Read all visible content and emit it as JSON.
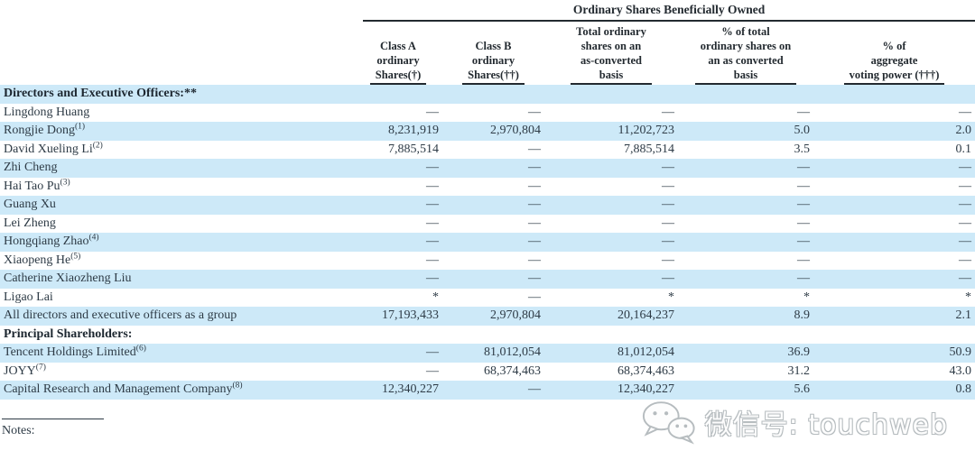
{
  "table": {
    "span_header": "Ordinary Shares Beneficially Owned",
    "columns": [
      {
        "lines": [
          "Class A",
          "ordinary",
          "Shares(†)"
        ]
      },
      {
        "lines": [
          "Class B",
          "ordinary",
          "Shares(††)"
        ]
      },
      {
        "lines": [
          "Total ordinary",
          "shares on an",
          "as-converted",
          "basis"
        ]
      },
      {
        "lines": [
          "% of total",
          "ordinary shares on",
          "an as converted",
          "basis"
        ]
      },
      {
        "lines": [
          "% of",
          "aggregate",
          "voting power (†††)"
        ]
      }
    ],
    "rows": [
      {
        "name": "Directors and Executive Officers:**",
        "bold": true,
        "hl": true,
        "cells": [
          "",
          "",
          "",
          "",
          ""
        ]
      },
      {
        "name": "Lingdong Huang",
        "bold": false,
        "hl": false,
        "cells": [
          "—",
          "—",
          "—",
          "—",
          "—"
        ]
      },
      {
        "name": "Rongjie Dong",
        "sup": "(1)",
        "bold": false,
        "hl": true,
        "cells": [
          "8,231,919",
          "2,970,804",
          "11,202,723",
          "5.0",
          "2.0"
        ]
      },
      {
        "name": "David Xueling Li",
        "sup": "(2)",
        "bold": false,
        "hl": false,
        "cells": [
          "7,885,514",
          "—",
          "7,885,514",
          "3.5",
          "0.1"
        ]
      },
      {
        "name": "Zhi Cheng",
        "bold": false,
        "hl": true,
        "cells": [
          "—",
          "—",
          "—",
          "—",
          "—"
        ]
      },
      {
        "name": "Hai Tao Pu",
        "sup": "(3)",
        "bold": false,
        "hl": false,
        "cells": [
          "—",
          "—",
          "—",
          "—",
          "—"
        ]
      },
      {
        "name": "Guang Xu",
        "bold": false,
        "hl": true,
        "cells": [
          "—",
          "—",
          "—",
          "—",
          "—"
        ]
      },
      {
        "name": "Lei Zheng",
        "bold": false,
        "hl": false,
        "cells": [
          "—",
          "—",
          "—",
          "—",
          "—"
        ]
      },
      {
        "name": "Hongqiang Zhao",
        "sup": "(4)",
        "bold": false,
        "hl": true,
        "cells": [
          "—",
          "—",
          "—",
          "—",
          "—"
        ]
      },
      {
        "name": "Xiaopeng He",
        "sup": "(5)",
        "bold": false,
        "hl": false,
        "cells": [
          "—",
          "—",
          "—",
          "—",
          "—"
        ]
      },
      {
        "name": "Catherine Xiaozheng Liu",
        "bold": false,
        "hl": true,
        "cells": [
          "—",
          "—",
          "—",
          "—",
          "—"
        ]
      },
      {
        "name": "Ligao Lai",
        "bold": false,
        "hl": false,
        "cells": [
          "*",
          "—",
          "*",
          "*",
          "*"
        ]
      },
      {
        "name": "All directors and executive officers as a group",
        "bold": false,
        "hl": true,
        "cells": [
          "17,193,433",
          "2,970,804",
          "20,164,237",
          "8.9",
          "2.1"
        ]
      },
      {
        "name": "Principal Shareholders:",
        "bold": true,
        "hl": false,
        "cells": [
          "",
          "",
          "",
          "",
          ""
        ]
      },
      {
        "name": "Tencent Holdings Limited",
        "sup": "(6)",
        "bold": false,
        "hl": true,
        "cells": [
          "—",
          "81,012,054",
          "81,012,054",
          "36.9",
          "50.9"
        ]
      },
      {
        "name": "JOYY",
        "sup": "(7)",
        "bold": false,
        "hl": false,
        "cells": [
          "—",
          "68,374,463",
          "68,374,463",
          "31.2",
          "43.0"
        ]
      },
      {
        "name": "Capital Research and Management Company",
        "sup": "(8)",
        "bold": false,
        "hl": true,
        "cells": [
          "12,340,227",
          "—",
          "12,340,227",
          "5.6",
          "0.8"
        ]
      }
    ]
  },
  "notes_label": "Notes:",
  "watermark": {
    "icon": "wechat-icon",
    "text": "微信号: touchweb"
  },
  "colors": {
    "row_highlight": "#cde9f8",
    "text": "#2e3b46",
    "rule": "#232a30"
  }
}
